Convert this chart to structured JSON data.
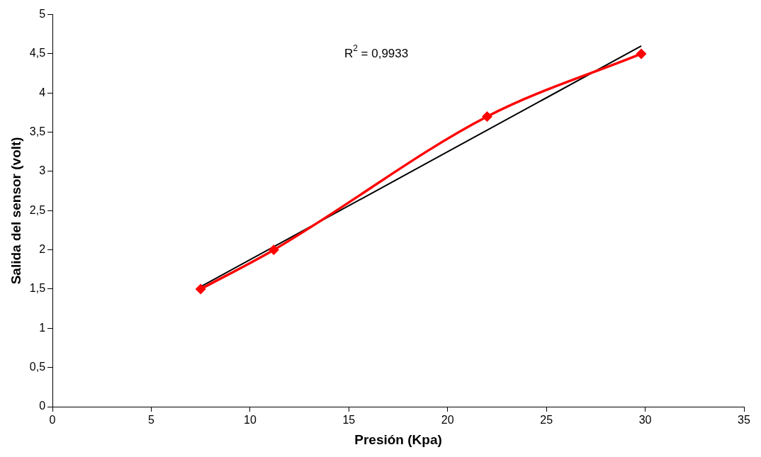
{
  "chart_data": {
    "type": "line",
    "xlabel": "Presión (Kpa)",
    "ylabel": "Salida del sensor (volt)",
    "x": [
      7.5,
      11.2,
      22,
      29.8
    ],
    "series": [
      {
        "color": "#ff0000",
        "values": [
          1.5,
          2.0,
          3.7,
          4.5
        ],
        "marker": "diamond"
      },
      {
        "type": "line",
        "color": "#000000",
        "x": [
          7.5,
          29.8
        ],
        "values": [
          1.53,
          4.6
        ],
        "marker": "none"
      }
    ],
    "xlim": [
      0,
      35
    ],
    "xticks": [
      0,
      5,
      10,
      15,
      20,
      25,
      30,
      35
    ],
    "ylim": [
      0,
      5
    ],
    "yticks": [
      0,
      {
        "value": 0.5,
        "label": "0,5"
      },
      1,
      {
        "value": 1.5,
        "label": "1,5"
      },
      2,
      {
        "value": 2.5,
        "label": "2,5"
      },
      3,
      {
        "value": 3.5,
        "label": "3,5"
      },
      4,
      {
        "value": 4.5,
        "label": "4,5"
      },
      5
    ],
    "annotations": [
      "R$^{2}$ = 0,9933"
    ],
    "grid": false,
    "legend": false
  }
}
